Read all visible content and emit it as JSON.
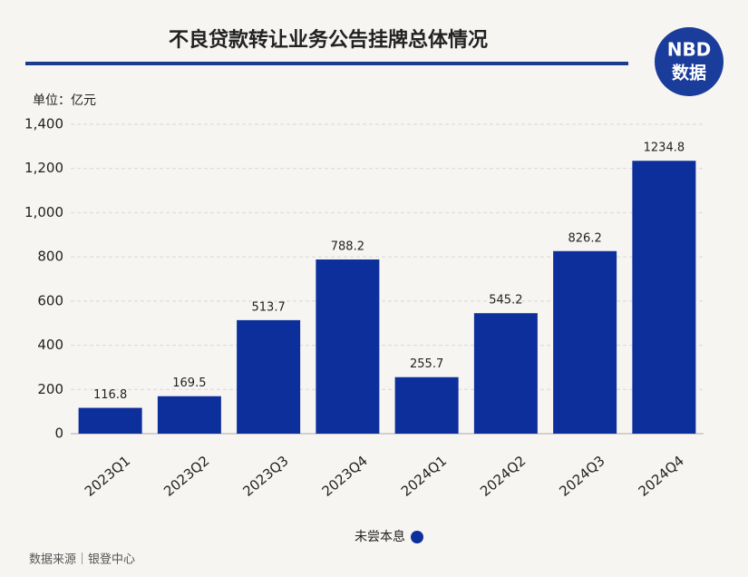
{
  "chart_data": {
    "type": "bar",
    "title": "不良贷款转让业务公告挂牌总体情况",
    "unit_label": "单位：亿元",
    "categories": [
      "2023Q1",
      "2023Q2",
      "2023Q3",
      "2023Q4",
      "2024Q1",
      "2024Q2",
      "2024Q3",
      "2024Q4"
    ],
    "series": [
      {
        "name": "未尝本息",
        "color": "#0d2f9b",
        "values": [
          116.8,
          169.5,
          513.7,
          788.2,
          255.7,
          545.2,
          826.2,
          1234.8
        ]
      }
    ],
    "ylim": [
      0,
      1400
    ],
    "yticks": [
      0,
      200,
      400,
      600,
      800,
      {
        "value": 1000,
        "label": "1,000"
      },
      {
        "value": 1200,
        "label": "1,200"
      },
      {
        "value": 1400,
        "label": "1,400"
      }
    ],
    "grid": true
  },
  "logo": {
    "line1": "NBD",
    "line2": "数据"
  },
  "source": "数据来源｜银登中心"
}
